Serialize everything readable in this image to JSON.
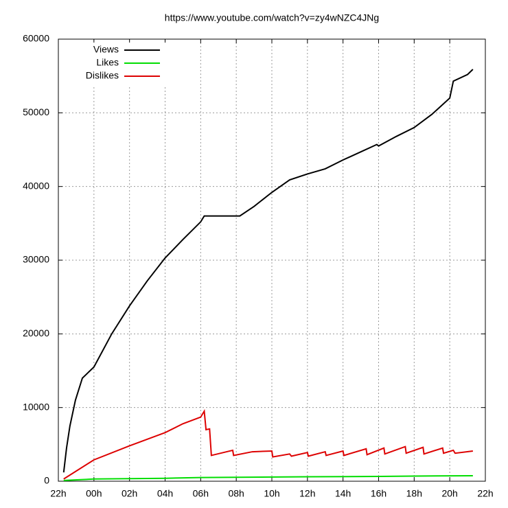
{
  "chart_data": {
    "type": "line",
    "title": "https://www.youtube.com/watch?v=zy4wNZC4JNg",
    "xlim": [
      0,
      24
    ],
    "xticks": [
      {
        "value": 0,
        "label": "22h"
      },
      {
        "value": 2,
        "label": "00h"
      },
      {
        "value": 4,
        "label": "02h"
      },
      {
        "value": 6,
        "label": "04h"
      },
      {
        "value": 8,
        "label": "06h"
      },
      {
        "value": 10,
        "label": "08h"
      },
      {
        "value": 12,
        "label": "10h"
      },
      {
        "value": 14,
        "label": "12h"
      },
      {
        "value": 16,
        "label": "14h"
      },
      {
        "value": 18,
        "label": "16h"
      },
      {
        "value": 20,
        "label": "18h"
      },
      {
        "value": 22,
        "label": "20h"
      },
      {
        "value": 24,
        "label": "22h"
      }
    ],
    "ylim": [
      0,
      60000
    ],
    "yticks": [
      0,
      10000,
      20000,
      30000,
      40000,
      50000,
      60000
    ],
    "grid": true,
    "legend": "top-left",
    "series": [
      {
        "name": "Views",
        "color": "#000000",
        "x": [
          0.3,
          0.46,
          0.65,
          0.96,
          1.35,
          2,
          3,
          4,
          5,
          6,
          7,
          8,
          8.2,
          10.2,
          11,
          12,
          13,
          14,
          15,
          16,
          17,
          17.9,
          18,
          19,
          20,
          21,
          22,
          22.2,
          23,
          23.3
        ],
        "values": [
          1200,
          4500,
          7500,
          11000,
          14000,
          15500,
          20000,
          23800,
          27200,
          30300,
          32800,
          35200,
          36000,
          36000,
          37300,
          39200,
          40900,
          41700,
          42400,
          43600,
          44700,
          45700,
          45500,
          46800,
          48000,
          49800,
          52000,
          54300,
          55200,
          55900
        ]
      },
      {
        "name": "Likes",
        "color": "#00dd00",
        "x": [
          0.3,
          2,
          6,
          8,
          14,
          18,
          20,
          23.3
        ],
        "values": [
          100,
          300,
          400,
          500,
          600,
          650,
          700,
          750
        ]
      },
      {
        "name": "Dislikes",
        "color": "#dd0000",
        "x": [
          0.3,
          2,
          4,
          6,
          7,
          8,
          8.2,
          8.3,
          8.5,
          8.6,
          9.8,
          9.85,
          10.9,
          12,
          12.05,
          13,
          13.1,
          14,
          14.05,
          15,
          15.05,
          16,
          16.05,
          17.3,
          17.35,
          18.3,
          18.35,
          19.5,
          19.55,
          20.5,
          20.55,
          21.6,
          21.65,
          22.2,
          22.3,
          23.3
        ],
        "values": [
          300,
          2900,
          4800,
          6600,
          7800,
          8700,
          9500,
          7000,
          7100,
          3500,
          4200,
          3500,
          4000,
          4100,
          3300,
          3700,
          3400,
          3900,
          3400,
          4000,
          3500,
          4100,
          3500,
          4400,
          3600,
          4500,
          3700,
          4700,
          3800,
          4600,
          3700,
          4500,
          3800,
          4200,
          3800,
          4100
        ]
      }
    ]
  }
}
